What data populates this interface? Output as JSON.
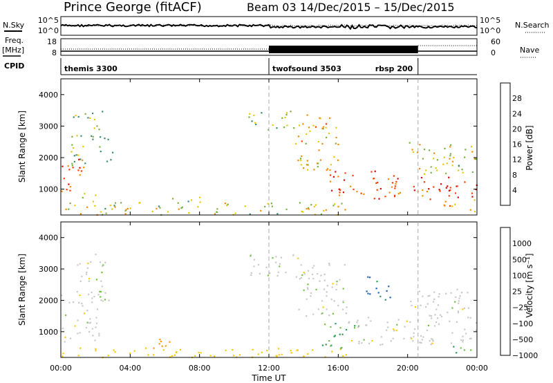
{
  "header": {
    "station": "Prince George (fitACF)",
    "beam_dates": "Beam 03  14/Dec/2015 – 15/Dec/2015"
  },
  "labels": {
    "nsky": "N.Sky",
    "nsearch": "N.Search",
    "freq_line1": "Freq.",
    "freq_line2": "[MHz]",
    "nave": "Nave",
    "cpid": "CPID",
    "xlabel": "Time UT"
  },
  "noise_axis": {
    "left_ticks": [
      "10^5",
      "10^0"
    ],
    "right_ticks": [
      "10^5",
      "10^0"
    ]
  },
  "freq_axis": {
    "left_ticks": [
      "18",
      "8"
    ],
    "right_ticks": [
      "60",
      "0"
    ]
  },
  "cpid_segments": [
    {
      "name": "themis 3300",
      "start_hour": 0,
      "end_hour": 12
    },
    {
      "name": "twofsound 3503",
      "start_hour": 12,
      "end_hour": 20.6
    },
    {
      "name": "rbsp 200",
      "start_hour": 20.6,
      "end_hour": 24
    }
  ],
  "x_ticks": [
    "00:00",
    "04:00",
    "08:00",
    "12:00",
    "16:00",
    "20:00",
    "00:00"
  ],
  "colors": {
    "power_scale": [
      "#0000ff",
      "#1e4fb4",
      "#3a8a6a",
      "#78b040",
      "#e8c800",
      "#f58b00",
      "#ff3a00",
      "#e00000"
    ],
    "velocity_scale": [
      "#e00000",
      "#ff5a00",
      "#ff9a00",
      "#ffc800",
      "#c8c8c8",
      "#c8c8c8",
      "#70c040",
      "#2a9a50",
      "#2060b0",
      "#1a2aa0"
    ]
  },
  "chart_data": [
    {
      "type": "heatmap",
      "name": "power",
      "ylabel": "Slant Range [km]",
      "xlim_hours": [
        0,
        24
      ],
      "ylim": [
        180,
        4500
      ],
      "y_ticks": [
        1000,
        2000,
        3000,
        4000
      ],
      "colorbar": {
        "label": "Power [dB]",
        "ticks": [
          "4",
          "8",
          "12",
          "16",
          "20",
          "24",
          "28"
        ],
        "range": [
          0,
          30
        ]
      },
      "regions": [
        {
          "t_start": 0.0,
          "t_end": 1.3,
          "r_start": 800,
          "r_end": 2000,
          "value": 24
        },
        {
          "t_start": 0.4,
          "t_end": 1.8,
          "r_start": 1700,
          "r_end": 2500,
          "value": 14
        },
        {
          "t_start": 0.6,
          "t_end": 2.4,
          "r_start": 2600,
          "r_end": 3500,
          "value": 12
        },
        {
          "t_start": 2.1,
          "t_end": 3.0,
          "r_start": 1900,
          "r_end": 2700,
          "value": 12
        },
        {
          "t_start": 1.0,
          "t_end": 2.2,
          "r_start": 600,
          "r_end": 900,
          "value": 14
        },
        {
          "t_start": 0.0,
          "t_end": 16.5,
          "r_start": 200,
          "r_end": 600,
          "value": 16
        },
        {
          "t_start": 6.2,
          "t_end": 8.6,
          "r_start": 550,
          "r_end": 780,
          "value": 12
        },
        {
          "t_start": 10.8,
          "t_end": 13.5,
          "r_start": 2900,
          "r_end": 3500,
          "value": 14
        },
        {
          "t_start": 13.5,
          "t_end": 16.0,
          "r_start": 1600,
          "r_end": 3400,
          "value": 18
        },
        {
          "t_start": 15.5,
          "t_end": 18.2,
          "r_start": 800,
          "r_end": 1600,
          "value": 26
        },
        {
          "t_start": 18.0,
          "t_end": 21.5,
          "r_start": 700,
          "r_end": 1500,
          "value": 24
        },
        {
          "t_start": 21.5,
          "t_end": 24.0,
          "r_start": 700,
          "r_end": 1400,
          "value": 27
        },
        {
          "t_start": 20.0,
          "t_end": 24.0,
          "r_start": 1500,
          "r_end": 2500,
          "value": 16
        },
        {
          "t_start": 22.0,
          "t_end": 24.0,
          "r_start": 300,
          "r_end": 700,
          "value": 20
        }
      ]
    },
    {
      "type": "heatmap",
      "name": "velocity",
      "ylabel": "Slant Range [km]",
      "xlim_hours": [
        0,
        24
      ],
      "ylim": [
        180,
        4500
      ],
      "y_ticks": [
        1000,
        2000,
        3000,
        4000
      ],
      "colorbar": {
        "label": "Velocity [m s⁻¹]",
        "ticks": [
          "1000",
          "500",
          "100",
          "25",
          "−25",
          "−100",
          "−500",
          "−1000"
        ],
        "range": [
          -1000,
          1000
        ]
      },
      "regions": [
        {
          "t_start": 0.0,
          "t_end": 2.3,
          "r_start": 700,
          "r_end": 2300,
          "value": 0
        },
        {
          "t_start": 0.7,
          "t_end": 2.6,
          "r_start": 2600,
          "r_end": 3500,
          "value": 0
        },
        {
          "t_start": 2.1,
          "t_end": 3.0,
          "r_start": 1900,
          "r_end": 2700,
          "value": 50
        },
        {
          "t_start": 0.0,
          "t_end": 16.5,
          "r_start": 200,
          "r_end": 500,
          "value": -60
        },
        {
          "t_start": 5.0,
          "t_end": 6.3,
          "r_start": 300,
          "r_end": 800,
          "value": -150
        },
        {
          "t_start": 10.8,
          "t_end": 14.0,
          "r_start": 2800,
          "r_end": 3500,
          "value": 0
        },
        {
          "t_start": 13.5,
          "t_end": 16.5,
          "r_start": 1500,
          "r_end": 3200,
          "value": 0
        },
        {
          "t_start": 15.0,
          "t_end": 17.0,
          "r_start": 500,
          "r_end": 1300,
          "value": 100
        },
        {
          "t_start": 17.5,
          "t_end": 19.0,
          "r_start": 2000,
          "r_end": 2800,
          "value": 500
        },
        {
          "t_start": 16.5,
          "t_end": 24.0,
          "r_start": 600,
          "r_end": 1500,
          "value": 0
        },
        {
          "t_start": 20.0,
          "t_end": 24.0,
          "r_start": 1500,
          "r_end": 2400,
          "value": 0
        },
        {
          "t_start": 22.5,
          "t_end": 24.0,
          "r_start": 300,
          "r_end": 600,
          "value": 80
        }
      ]
    }
  ]
}
